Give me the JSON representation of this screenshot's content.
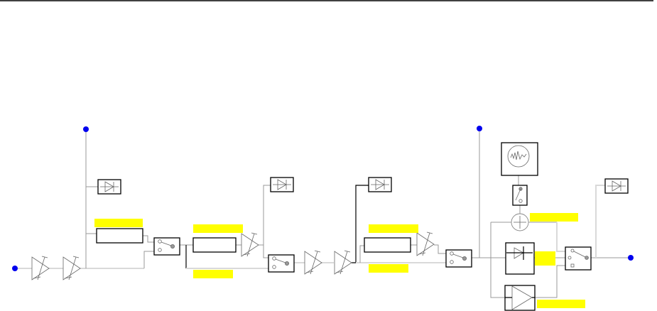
{
  "diagram": {
    "colors": {
      "port": "#0000ee",
      "label_highlight": "#ffff00",
      "wire": "#999999",
      "main_path": "#d9d9d9",
      "block_border": "#000000"
    },
    "icons": [
      "port-dot-icon",
      "variable-amplifier-icon",
      "detector-diode-icon",
      "switch-icon",
      "filter-block",
      "spectrum-analyzer-icon",
      "summer-icon",
      "amplifier-icon"
    ]
  }
}
